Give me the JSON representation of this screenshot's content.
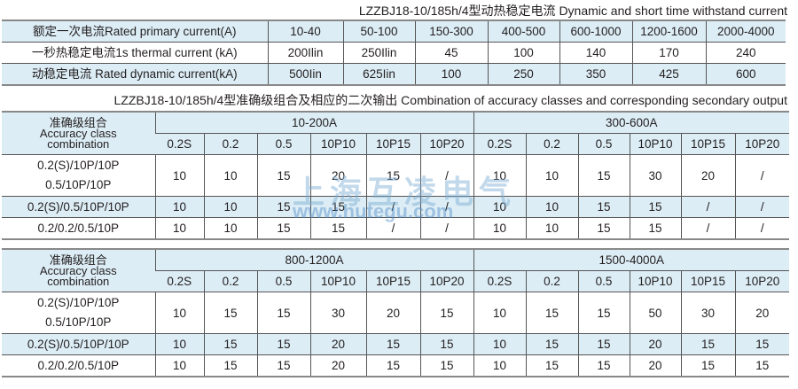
{
  "table1": {
    "caption": "LZZBJ18-10/185h/4型动热稳定电流 Dynamic and short time withstand current",
    "rows": [
      [
        "额定一次电流Rated primary current(A)",
        "10-40",
        "50-100",
        "150-300",
        "400-500",
        "600-1000",
        "1200-1600",
        "2000-4000"
      ],
      [
        "一秒热稳定电流1s thermal current (kA)",
        "200Ilin",
        "250Ilin",
        "45",
        "100",
        "140",
        "170",
        "240"
      ],
      [
        "动稳定电流 Rated dynamic current(kA)",
        "500Iin",
        "625Iin",
        "100",
        "250",
        "350",
        "425",
        "600"
      ]
    ]
  },
  "table2": {
    "caption": "LZZBJ18-10/185h/4型准确级组合及相应的二次输出 Combination of accuracy classes and corresponding secondary output",
    "corner_cn": "准确级组合",
    "corner_en1": "Accuracy class",
    "corner_en2": "combination",
    "groups": [
      "10-200A",
      "300-600A"
    ],
    "classes": [
      "0.2S",
      "0.2",
      "0.5",
      "10P10",
      "10P15",
      "10P20",
      "0.2S",
      "0.2",
      "0.5",
      "10P10",
      "10P15",
      "10P20"
    ],
    "rows": [
      {
        "l1": "0.2(S)/10P/10P",
        "l2": "0.5/10P/10P",
        "v": [
          "10",
          "10",
          "15",
          "20",
          "15",
          "/",
          "10",
          "10",
          "15",
          "30",
          "20",
          "/"
        ]
      },
      {
        "l1": "0.2(S)/0.5/10P/10P",
        "v": [
          "10",
          "10",
          "15",
          "15",
          "/",
          "/",
          "10",
          "10",
          "15",
          "15",
          "/",
          "/"
        ]
      },
      {
        "l1": "0.2/0.2/0.5/10P",
        "v": [
          "10",
          "10",
          "15",
          "15",
          "/",
          "/",
          "10",
          "10",
          "15",
          "15",
          "/",
          "/"
        ]
      }
    ]
  },
  "table3": {
    "corner_cn": "准确级组合",
    "corner_en1": "Accuracy class",
    "corner_en2": "combination",
    "groups": [
      "800-1200A",
      "1500-4000A"
    ],
    "classes": [
      "0.2S",
      "0.2",
      "0.5",
      "10P10",
      "10P15",
      "10P20",
      "0.2S",
      "0.2",
      "0.5",
      "10P10",
      "10P15",
      "10P20"
    ],
    "rows": [
      {
        "l1": "0.2(S)/10P/10P",
        "l2": "0.5/10P/10P",
        "v": [
          "10",
          "15",
          "15",
          "30",
          "20",
          "15",
          "10",
          "15",
          "15",
          "50",
          "30",
          "20"
        ]
      },
      {
        "l1": "0.2(S)/0.5/10P/10P",
        "v": [
          "10",
          "15",
          "15",
          "20",
          "15",
          "15",
          "10",
          "15",
          "15",
          "20",
          "15",
          "15"
        ]
      },
      {
        "l1": "0.2/0.2/0.5/10P",
        "v": [
          "10",
          "15",
          "15",
          "20",
          "15",
          "15",
          "10",
          "15",
          "15",
          "20",
          "15",
          "15"
        ]
      }
    ]
  },
  "watermark": {
    "cn": "上海互凌电气",
    "url": "www.hutegu.com"
  }
}
